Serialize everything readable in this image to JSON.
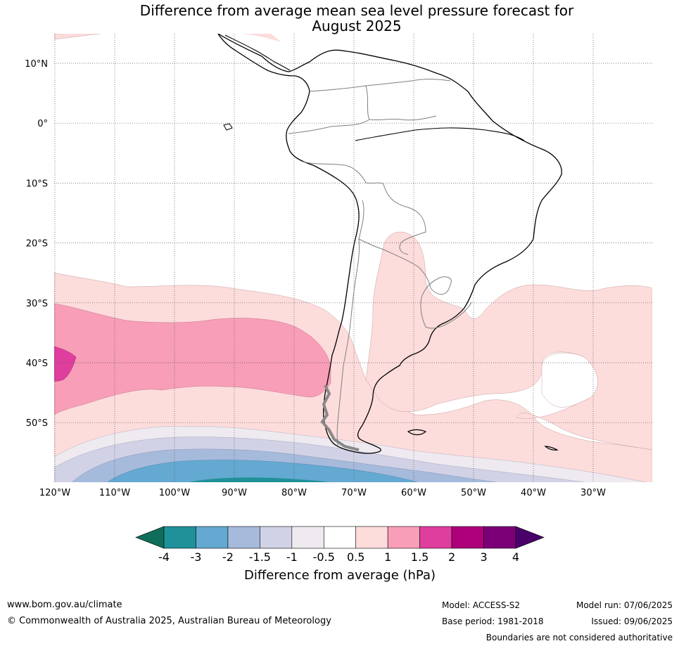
{
  "title_line1": "Difference from average mean sea level pressure forecast for",
  "title_line2": "August 2025",
  "lat_labels": [
    "10°N",
    "0°",
    "10°S",
    "20°S",
    "30°S",
    "40°S",
    "50°S"
  ],
  "lon_labels": [
    "120°W",
    "110°W",
    "100°W",
    "90°W",
    "80°W",
    "70°W",
    "60°W",
    "50°W",
    "40°W",
    "30°W"
  ],
  "colorbar": {
    "title": "Difference from average (hPa)",
    "tick_labels": [
      "-4",
      "-3",
      "-2",
      "-1.5",
      "-1",
      "-0.5",
      "0.5",
      "1",
      "1.5",
      "2",
      "3",
      "4"
    ],
    "colors": [
      "#0f6e5a",
      "#1f9199",
      "#64a9d1",
      "#a6badb",
      "#d2d2e6",
      "#eeeaf0",
      "#ffffff",
      "#fddcdc",
      "#f89eb8",
      "#df3e9e",
      "#ae007a",
      "#7b0078",
      "#4a006a"
    ]
  },
  "footer": {
    "website": "www.bom.gov.au/climate",
    "copyright": "© Commonwealth of Australia 2025, Australian Bureau of Meteorology",
    "model": "Model: ACCESS-S2",
    "base_period": "Base period: 1981-2018",
    "model_run": "Model run: 07/06/2025",
    "issued": "Issued: 09/06/2025",
    "disclaimer": "Boundaries are not considered authoritative"
  }
}
